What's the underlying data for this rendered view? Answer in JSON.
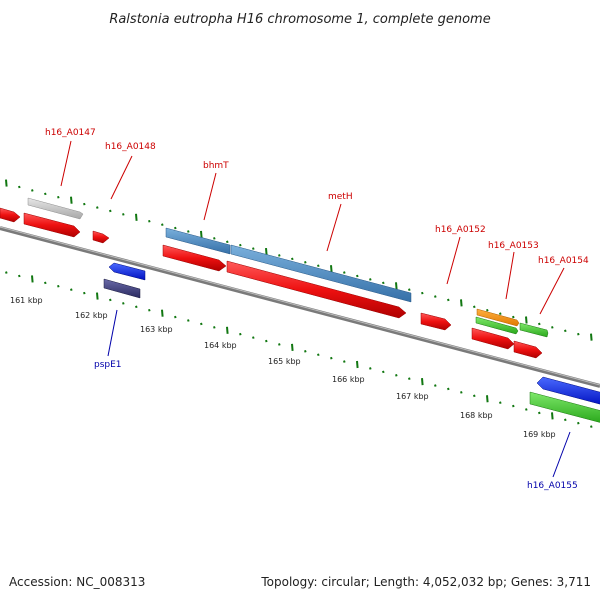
{
  "title": "Ralstonia eutropha H16 chromosome 1, complete genome",
  "footer": {
    "accession": "Accession: NC_008313",
    "summary": "Topology: circular; Length: 4,052,032 bp; Genes: 3,711"
  },
  "scale_labels": [
    "161 kbp",
    "162 kbp",
    "163 kbp",
    "164 kbp",
    "165 kbp",
    "166 kbp",
    "167 kbp",
    "168 kbp",
    "169 kbp"
  ],
  "gene_labels": [
    {
      "name": "h16_A0147",
      "strand": "forward"
    },
    {
      "name": "h16_A0148",
      "strand": "forward"
    },
    {
      "name": "bhmT",
      "strand": "forward"
    },
    {
      "name": "metH",
      "strand": "forward"
    },
    {
      "name": "h16_A0152",
      "strand": "forward"
    },
    {
      "name": "h16_A0153",
      "strand": "forward"
    },
    {
      "name": "h16_A0154",
      "strand": "forward"
    },
    {
      "name": "pspE1",
      "strand": "reverse"
    },
    {
      "name": "h16_A0155",
      "strand": "reverse"
    }
  ],
  "colors": {
    "forward_label": "#cc0000",
    "reverse_label": "#0000aa",
    "cds": "#ee1111",
    "gene_gray": "#c4c4c4",
    "gene_blue": "#4a88c0",
    "gene_orange": "#f09010",
    "gene_green": "#44cc33",
    "reverse_blue": "#1133ee",
    "reverse_purple": "#40407a",
    "backbone": "#808080",
    "ticks": "#117711"
  }
}
